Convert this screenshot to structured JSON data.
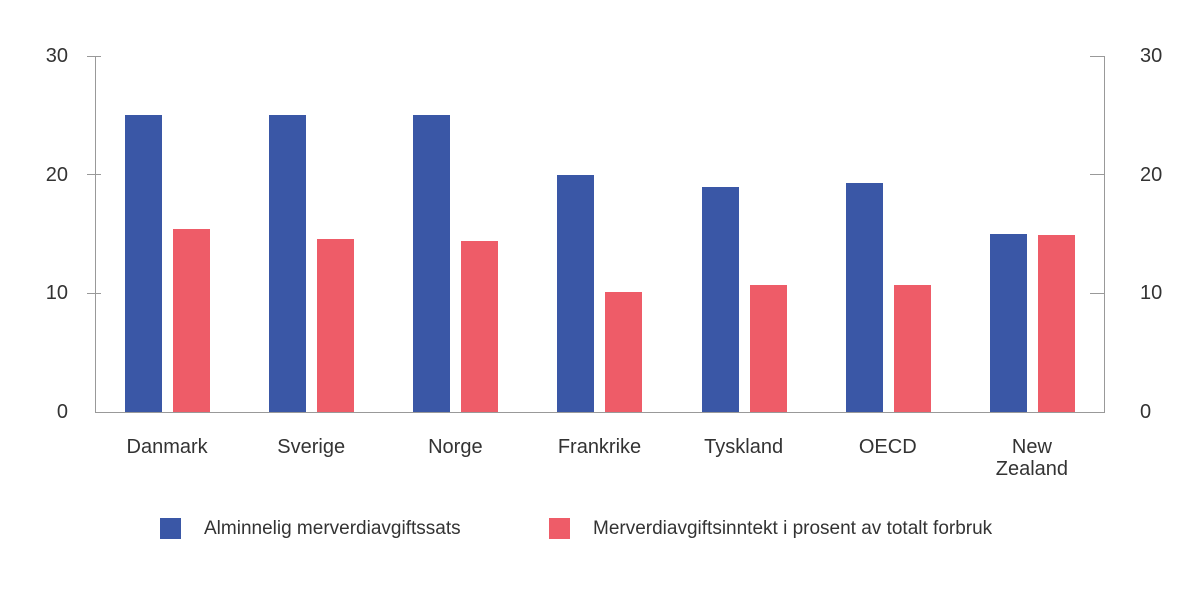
{
  "chart_data": {
    "type": "bar",
    "title": "",
    "categories": [
      "Danmark",
      "Sverige",
      "Norge",
      "Frankrike",
      "Tyskland",
      "OECD",
      "New\nZealand"
    ],
    "series": [
      {
        "name": "Alminnelig merverdiavgiftssats",
        "color": "#3A57A6",
        "values": [
          25,
          25,
          25,
          20,
          19,
          19.3,
          15
        ]
      },
      {
        "name": "Merverdiavgiftsinntekt i prosent av totalt forbruk",
        "color": "#EE5C68",
        "values": [
          15.4,
          14.6,
          14.4,
          10.1,
          10.7,
          10.7,
          14.9
        ]
      }
    ],
    "xlabel": "",
    "ylabel": "",
    "ylim": [
      0,
      30
    ],
    "yticks": [
      0,
      10,
      20,
      30
    ],
    "y_axis_sides": [
      "left",
      "right"
    ],
    "grid": false,
    "legend_position": "bottom",
    "axis_color": "#999999",
    "text_color": "#333333"
  }
}
